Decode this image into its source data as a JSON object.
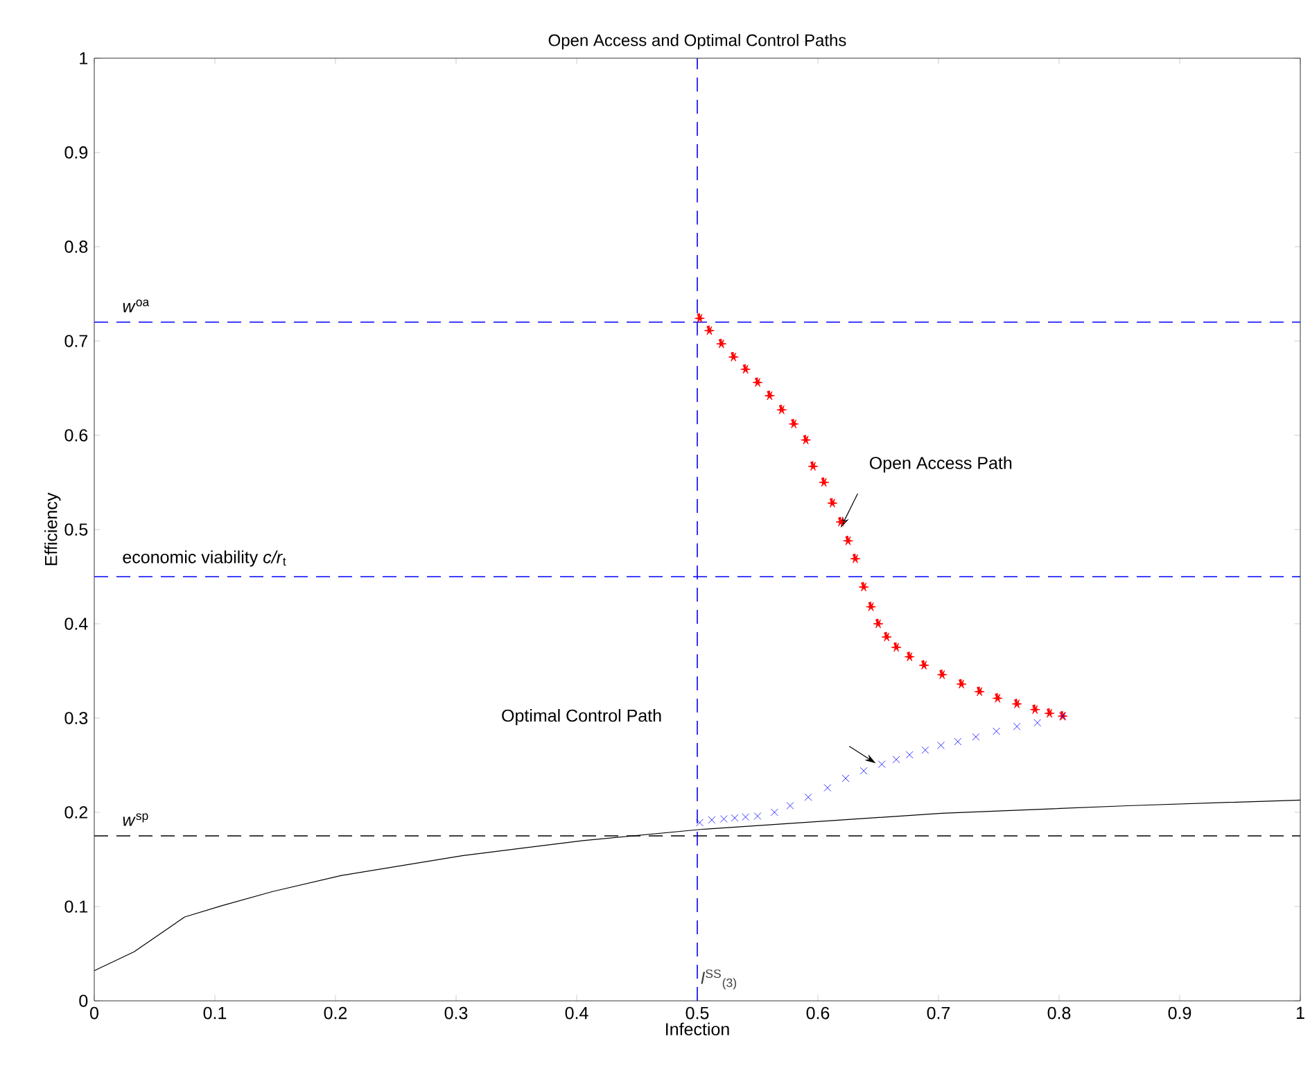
{
  "chart_data": {
    "type": "scatter",
    "title": "Open Access and Optimal Control Paths",
    "xlabel": "Infection",
    "ylabel": "Efficiency",
    "xlim": [
      0,
      1
    ],
    "ylim": [
      0,
      1
    ],
    "xticks": [
      0,
      0.1,
      0.2,
      0.3,
      0.4,
      0.5,
      0.6,
      0.7,
      0.8,
      0.9,
      1
    ],
    "yticks": [
      0,
      0.1,
      0.2,
      0.3,
      0.4,
      0.5,
      0.6,
      0.7,
      0.8,
      0.9,
      1
    ],
    "series": [
      {
        "type": "scatter",
        "marker": "star",
        "color": "#ff0000",
        "x": [
          0.502,
          0.51,
          0.52,
          0.53,
          0.54,
          0.55,
          0.56,
          0.57,
          0.58,
          0.59,
          0.596,
          0.605,
          0.612,
          0.619,
          0.625,
          0.631,
          0.638,
          0.644,
          0.65,
          0.657,
          0.665,
          0.676,
          0.688,
          0.703,
          0.719,
          0.734,
          0.749,
          0.765,
          0.78,
          0.792,
          0.803
        ],
        "values": [
          0.724,
          0.711,
          0.697,
          0.683,
          0.67,
          0.656,
          0.642,
          0.627,
          0.612,
          0.595,
          0.567,
          0.55,
          0.528,
          0.508,
          0.488,
          0.469,
          0.439,
          0.418,
          0.4,
          0.386,
          0.375,
          0.365,
          0.356,
          0.346,
          0.336,
          0.328,
          0.321,
          0.315,
          0.309,
          0.305,
          0.302
        ]
      },
      {
        "type": "scatter",
        "marker": "cross",
        "color": "#0000ff",
        "x": [
          0.803,
          0.782,
          0.765,
          0.748,
          0.731,
          0.716,
          0.702,
          0.689,
          0.676,
          0.665,
          0.653,
          0.638,
          0.623,
          0.608,
          0.592,
          0.577,
          0.564,
          0.55,
          0.54,
          0.531,
          0.522,
          0.512,
          0.502
        ],
        "values": [
          0.302,
          0.295,
          0.291,
          0.286,
          0.28,
          0.275,
          0.271,
          0.266,
          0.261,
          0.256,
          0.251,
          0.244,
          0.236,
          0.226,
          0.216,
          0.207,
          0.2,
          0.196,
          0.195,
          0.194,
          0.193,
          0.192,
          0.189
        ]
      },
      {
        "type": "line",
        "marker": "none",
        "color": "#000000",
        "x": [
          0,
          0.033,
          0.075,
          0.106,
          0.148,
          0.205,
          0.305,
          0.405,
          0.504,
          0.703,
          0.857,
          1.0
        ],
        "values": [
          0.032,
          0.052,
          0.089,
          0.101,
          0.116,
          0.133,
          0.154,
          0.17,
          0.182,
          0.199,
          0.207,
          0.213
        ]
      }
    ],
    "ref_lines": [
      {
        "axis": "y",
        "value": 0.72,
        "label": "*w*$^{oa}$",
        "color": "#0000ff",
        "line_style": "dashed"
      },
      {
        "axis": "y",
        "value": 0.45,
        "label": "economic viability *c/r*$_{t}$",
        "color": "#0000ff",
        "line_style": "dashed"
      },
      {
        "axis": "y",
        "value": 0.175,
        "label": "*w*$^{sp}$",
        "color": "#000000",
        "line_style": "dashed"
      },
      {
        "axis": "x",
        "value": 0.5,
        "label": "*I*$^{SS}$$_{(3)}$",
        "color": "#0000ff",
        "line_style": "dashed"
      }
    ],
    "annotations": [
      "Open Access Path",
      "Optimal Control Path"
    ]
  }
}
